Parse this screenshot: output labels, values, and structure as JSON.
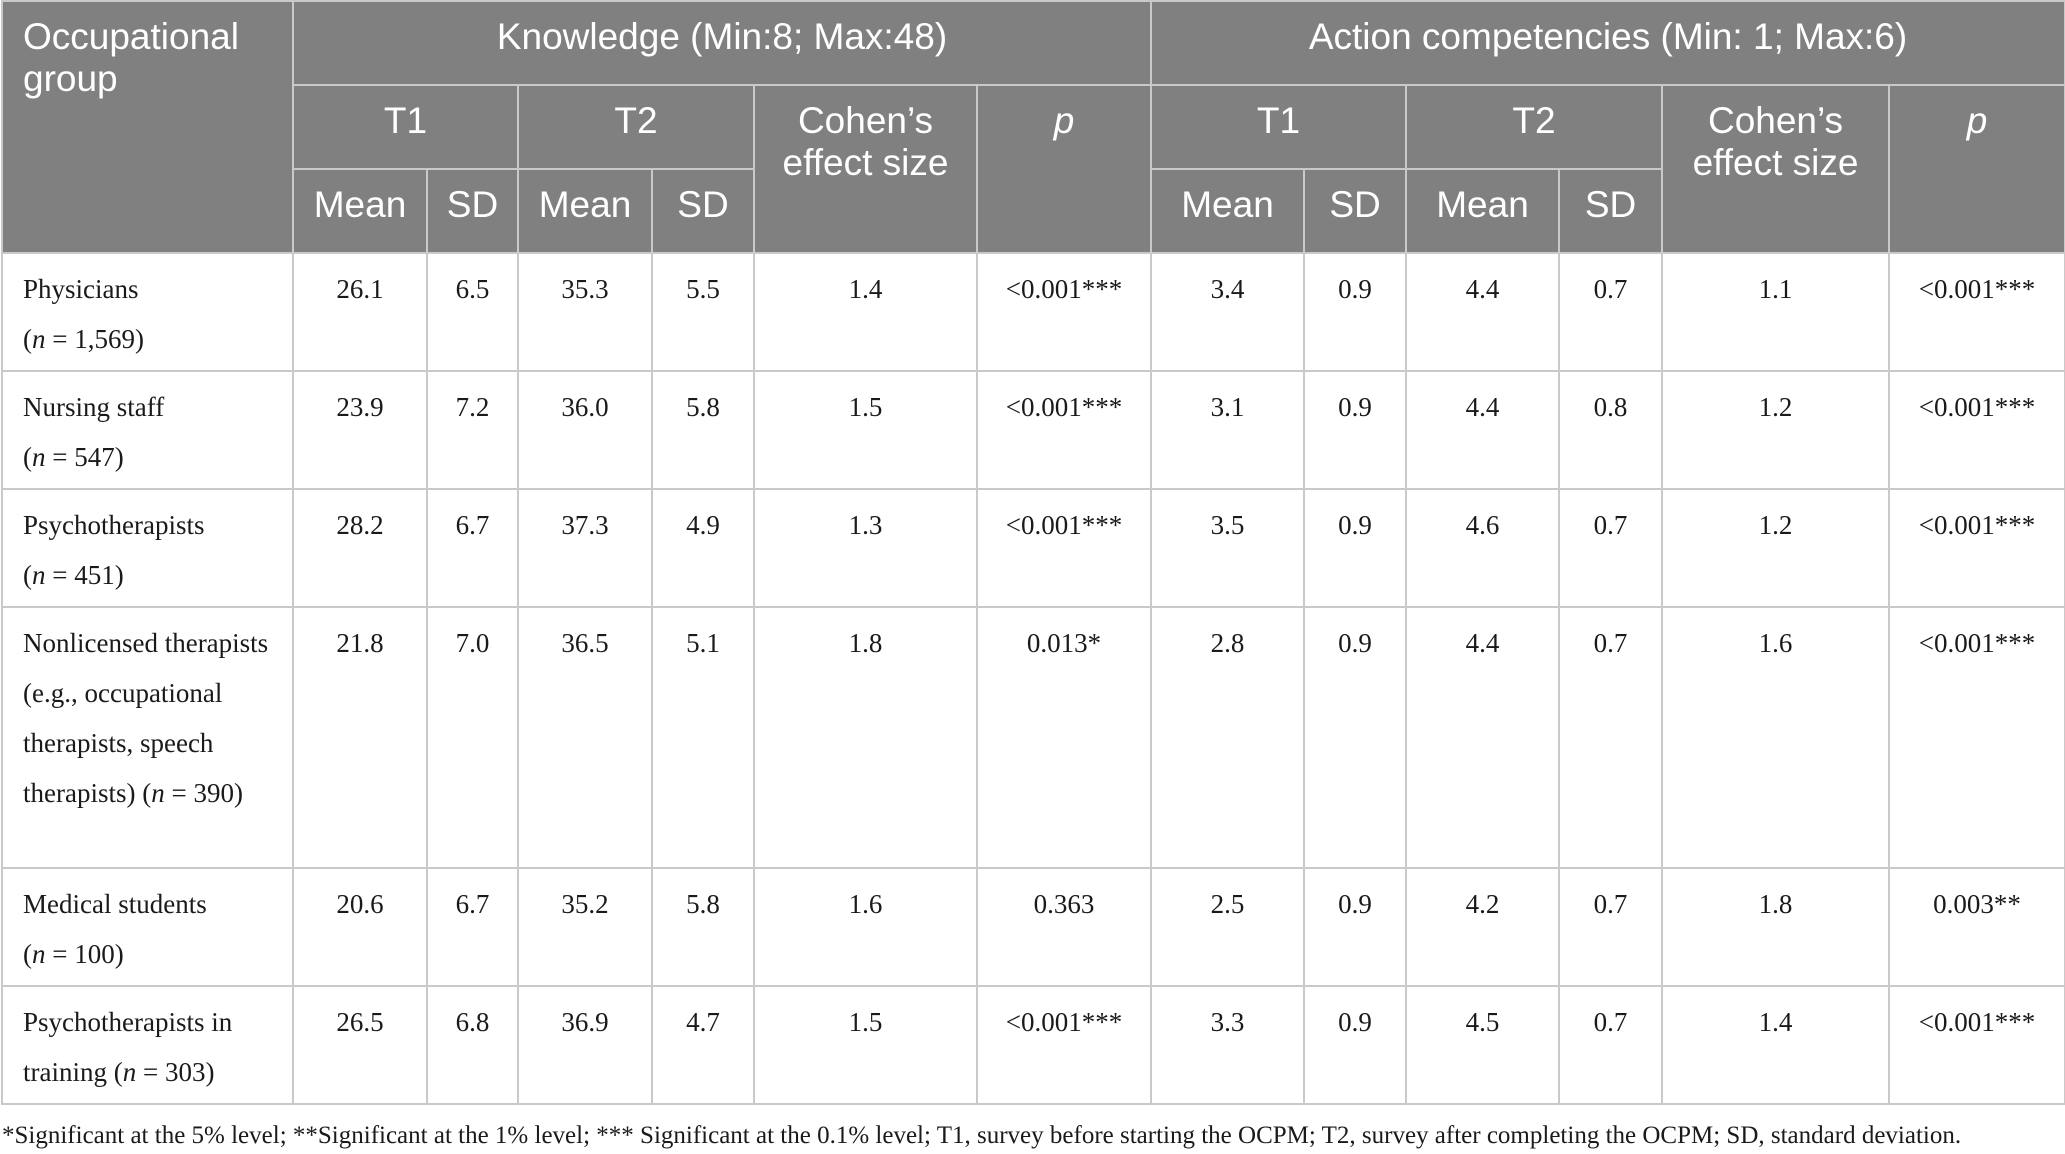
{
  "header": {
    "group": "Occupational group",
    "knowledge": "Knowledge (Min:8; Max:48)",
    "action": "Action competencies (Min: 1; Max:6)",
    "t1": "T1",
    "t2": "T2",
    "cohen": "Cohen’s effect size",
    "p": "p",
    "mean": "Mean",
    "sd": "SD"
  },
  "rows": [
    {
      "group": "Physicians",
      "n_label": "n",
      "n_value": " = 1,569)",
      "k_t1_mean": "26.1",
      "k_t1_sd": "6.5",
      "k_t2_mean": "35.3",
      "k_t2_sd": "5.5",
      "k_cohen": "1.4",
      "k_p": "<0.001***",
      "a_t1_mean": "3.4",
      "a_t1_sd": "0.9",
      "a_t2_mean": "4.4",
      "a_t2_sd": "0.7",
      "a_cohen": "1.1",
      "a_p": "<0.001***"
    },
    {
      "group": "Nursing staff",
      "n_label": "n",
      "n_value": " = 547)",
      "k_t1_mean": "23.9",
      "k_t1_sd": "7.2",
      "k_t2_mean": "36.0",
      "k_t2_sd": "5.8",
      "k_cohen": "1.5",
      "k_p": "<0.001***",
      "a_t1_mean": "3.1",
      "a_t1_sd": "0.9",
      "a_t2_mean": "4.4",
      "a_t2_sd": "0.8",
      "a_cohen": "1.2",
      "a_p": "<0.001***"
    },
    {
      "group": "Psychotherapists",
      "n_label": "n",
      "n_value": " = 451)",
      "k_t1_mean": "28.2",
      "k_t1_sd": "6.7",
      "k_t2_mean": "37.3",
      "k_t2_sd": "4.9",
      "k_cohen": "1.3",
      "k_p": "<0.001***",
      "a_t1_mean": "3.5",
      "a_t1_sd": "0.9",
      "a_t2_mean": "4.6",
      "a_t2_sd": "0.7",
      "a_cohen": "1.2",
      "a_p": "<0.001***"
    },
    {
      "group": "Nonlicensed therapists (e.g., occupational therapists, speech therapists)",
      "n_label": "n",
      "n_value": " = 390)",
      "k_t1_mean": "21.8",
      "k_t1_sd": "7.0",
      "k_t2_mean": "36.5",
      "k_t2_sd": "5.1",
      "k_cohen": "1.8",
      "k_p": "0.013*",
      "a_t1_mean": "2.8",
      "a_t1_sd": "0.9",
      "a_t2_mean": "4.4",
      "a_t2_sd": "0.7",
      "a_cohen": "1.6",
      "a_p": "<0.001***"
    },
    {
      "group": "Medical students",
      "n_label": "n",
      "n_value": " = 100)",
      "k_t1_mean": "20.6",
      "k_t1_sd": "6.7",
      "k_t2_mean": "35.2",
      "k_t2_sd": "5.8",
      "k_cohen": "1.6",
      "k_p": "0.363",
      "a_t1_mean": "2.5",
      "a_t1_sd": "0.9",
      "a_t2_mean": "4.2",
      "a_t2_sd": "0.7",
      "a_cohen": "1.8",
      "a_p": "0.003**"
    },
    {
      "group": "Psychotherapists in training",
      "n_label": "n",
      "n_value": " = 303)",
      "k_t1_mean": "26.5",
      "k_t1_sd": "6.8",
      "k_t2_mean": "36.9",
      "k_t2_sd": "4.7",
      "k_cohen": "1.5",
      "k_p": "<0.001***",
      "a_t1_mean": "3.3",
      "a_t1_sd": "0.9",
      "a_t2_mean": "4.5",
      "a_t2_sd": "0.7",
      "a_cohen": "1.4",
      "a_p": "<0.001***"
    }
  ],
  "note": "*Significant at the 5% level; **Significant at the 1% level; *** Significant at the 0.1% level; T1, survey before starting the OCPM; T2, survey after completing the OCPM; SD, standard deviation."
}
